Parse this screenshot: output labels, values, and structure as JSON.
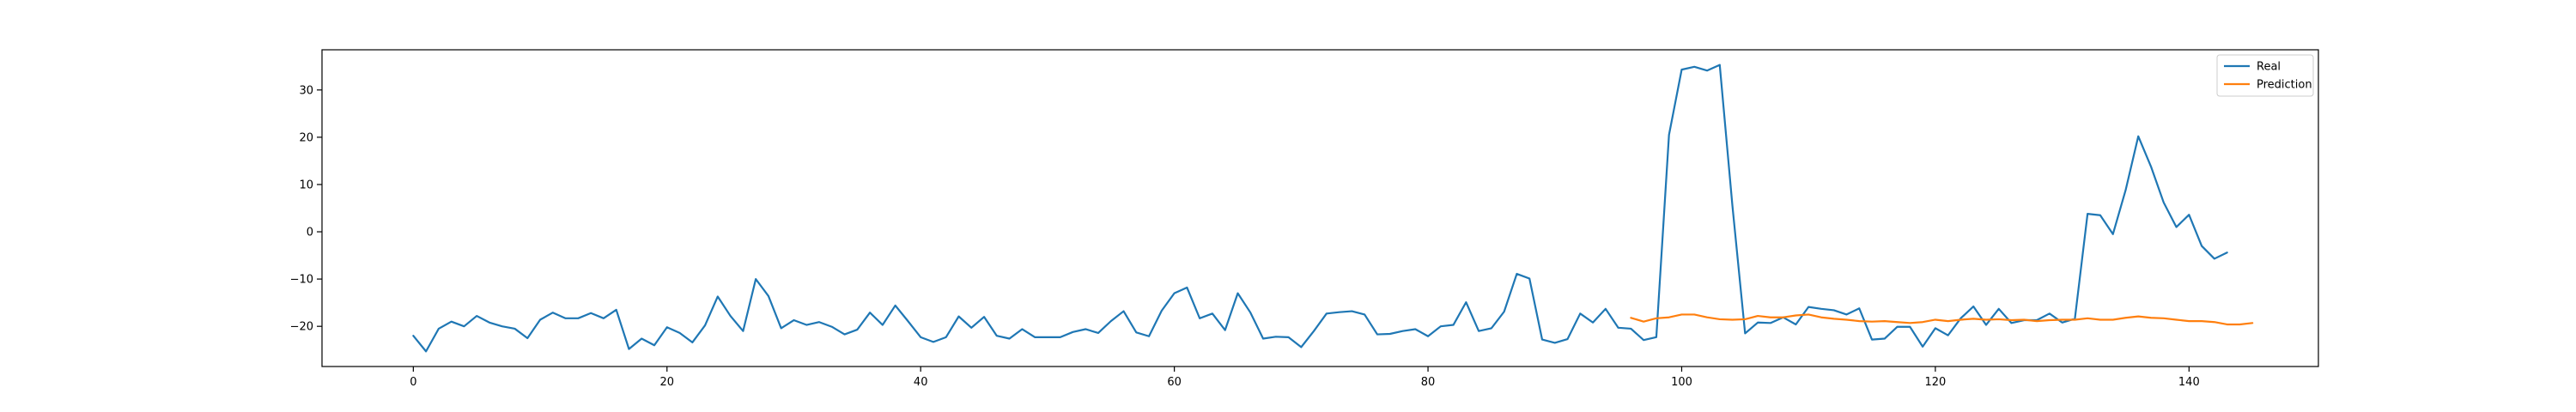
{
  "chart_data": {
    "type": "line",
    "title": "",
    "xlabel": "",
    "ylabel": "",
    "xlim": [
      -7.2,
      150.2
    ],
    "ylim": [
      -28.5,
      38.5
    ],
    "xticks": [
      0,
      20,
      40,
      60,
      80,
      100,
      120,
      140
    ],
    "yticks": [
      -20,
      -10,
      0,
      10,
      20,
      30
    ],
    "grid": false,
    "legend_position": "top-right",
    "colors": {
      "Real": "#1f77b4",
      "Prediction": "#ff7f0e"
    },
    "series": [
      {
        "name": "Real",
        "x_start": 0,
        "values": [
          -22,
          -25.3,
          -20.5,
          -19,
          -20,
          -17.8,
          -19.2,
          -20,
          -20.5,
          -22.5,
          -18.6,
          -17.1,
          -18.3,
          -18.3,
          -17.2,
          -18.3,
          -16.5,
          -24.8,
          -22.6,
          -24,
          -20.2,
          -21.4,
          -23.4,
          -19.8,
          -13.7,
          -17.8,
          -21,
          -10,
          -13.6,
          -20.4,
          -18.7,
          -19.7,
          -19.1,
          -20.1,
          -21.7,
          -20.7,
          -17.1,
          -19.7,
          -15.6,
          -18.9,
          -22.3,
          -23.3,
          -22.3,
          -17.9,
          -20.3,
          -18,
          -22,
          -22.6,
          -20.6,
          -22.3,
          -22.3,
          -22.3,
          -21.2,
          -20.6,
          -21.4,
          -18.9,
          -16.8,
          -21.3,
          -22.1,
          -16.7,
          -13,
          -11.8,
          -18.3,
          -17.3,
          -20.8,
          -13,
          -17.1,
          -22.6,
          -22.2,
          -22.3,
          -24.4,
          -21,
          -17.3,
          -17,
          -16.8,
          -17.5,
          -21.7,
          -21.6,
          -21,
          -20.6,
          -22.1,
          -20,
          -19.7,
          -14.9,
          -21,
          -20.4,
          -16.9,
          -8.9,
          -9.9,
          -22.8,
          -23.5,
          -22.7,
          -17.3,
          -19.2,
          -16.3,
          -20.3,
          -20.5,
          -22.9,
          -22.3,
          20.5,
          34.3,
          34.9,
          34.1,
          35.3,
          5.5,
          -21.5,
          -19.2,
          -19.3,
          -18.1,
          -19.6,
          -15.9,
          -16.3,
          -16.6,
          -17.5,
          -16.2,
          -22.8,
          -22.6,
          -20.1,
          -20.1,
          -24.3,
          -20.4,
          -21.9,
          -18.3,
          -15.8,
          -19.7,
          -16.3,
          -19.3,
          -18.7,
          -18.7,
          -17.3,
          -19.2,
          -18.4,
          3.8,
          3.5,
          -0.5,
          8.8,
          20.2,
          13.8,
          6.2,
          1,
          3.6,
          -3,
          -5.7,
          -4.4
        ]
      },
      {
        "name": "Prediction",
        "x_start": 96,
        "values": [
          -18.2,
          -19,
          -18.3,
          -18.1,
          -17.5,
          -17.5,
          -18.1,
          -18.5,
          -18.6,
          -18.5,
          -17.8,
          -18.1,
          -18.1,
          -17.7,
          -17.5,
          -18.1,
          -18.4,
          -18.6,
          -18.9,
          -19,
          -18.9,
          -19.1,
          -19.3,
          -19.1,
          -18.6,
          -18.9,
          -18.6,
          -18.4,
          -18.6,
          -18.5,
          -18.7,
          -18.6,
          -18.9,
          -18.7,
          -18.6,
          -18.6,
          -18.3,
          -18.6,
          -18.6,
          -18.2,
          -17.9,
          -18.2,
          -18.3,
          -18.6,
          -18.9,
          -18.9,
          -19.1,
          -19.6,
          -19.6,
          -19.3
        ]
      }
    ]
  }
}
